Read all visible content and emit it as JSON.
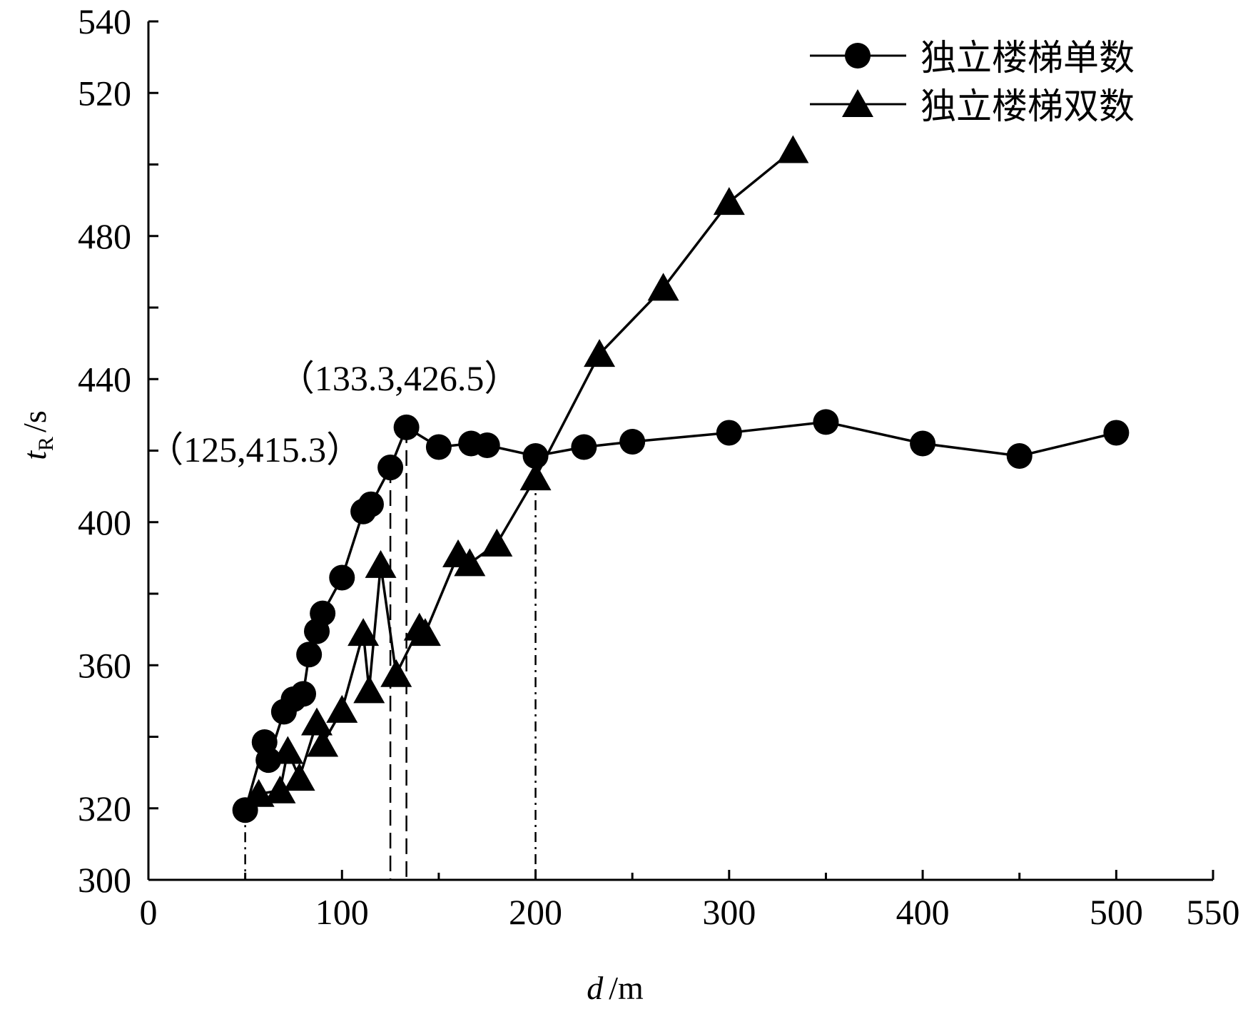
{
  "chart_data": {
    "type": "line",
    "xlabel": {
      "symbol": "d",
      "unit": "/m"
    },
    "ylabel": {
      "symbol": "t",
      "subscript": "R",
      "unit": "/s"
    },
    "xlim": [
      0,
      550
    ],
    "ylim": [
      300,
      540
    ],
    "xticks": [
      0,
      100,
      200,
      300,
      400,
      500,
      550
    ],
    "yticks": [
      300,
      320,
      360,
      400,
      440,
      480,
      520,
      540
    ],
    "legend_position": "top-right",
    "series": [
      {
        "name": "独立楼梯单数",
        "marker": "circle",
        "points": [
          [
            50,
            319.5
          ],
          [
            60,
            338.5
          ],
          [
            62,
            333.5
          ],
          [
            70,
            347
          ],
          [
            75,
            350.5
          ],
          [
            80,
            352
          ],
          [
            83,
            363
          ],
          [
            87,
            369.5
          ],
          [
            90,
            374.5
          ],
          [
            100,
            384.5
          ],
          [
            111,
            403
          ],
          [
            115,
            405
          ],
          [
            125,
            415.3
          ],
          [
            133.3,
            426.5
          ],
          [
            150,
            421
          ],
          [
            166.7,
            422
          ],
          [
            175,
            421.5
          ],
          [
            200,
            418.5
          ],
          [
            225,
            421
          ],
          [
            250,
            422.5
          ],
          [
            300,
            425
          ],
          [
            350,
            428
          ],
          [
            400,
            422
          ],
          [
            450,
            418.5
          ],
          [
            500,
            425
          ]
        ]
      },
      {
        "name": "独立楼梯双数",
        "marker": "triangle",
        "points": [
          [
            57,
            324
          ],
          [
            68,
            325
          ],
          [
            72,
            336
          ],
          [
            78,
            328.5
          ],
          [
            87,
            344
          ],
          [
            90,
            338
          ],
          [
            100,
            347.5
          ],
          [
            111,
            369
          ],
          [
            114,
            353
          ],
          [
            120,
            388
          ],
          [
            128,
            357.5
          ],
          [
            140,
            370.5
          ],
          [
            143,
            369
          ],
          [
            160,
            391
          ],
          [
            166,
            388.5
          ],
          [
            180,
            394
          ],
          [
            200,
            412.5
          ],
          [
            233,
            447
          ],
          [
            266,
            465.5
          ],
          [
            300,
            489.5
          ],
          [
            333,
            504
          ]
        ]
      }
    ],
    "reference_lines": [
      {
        "x": 50,
        "y": 319.5,
        "style": "dash-dot"
      },
      {
        "x": 125,
        "y": 415.3,
        "style": "dashed"
      },
      {
        "x": 133.3,
        "y": 426.5,
        "style": "dashed"
      },
      {
        "x": 200,
        "y": 418.5,
        "style": "dash-dot"
      }
    ],
    "annotations": [
      {
        "text": "（133.3,426.5）",
        "x": 133.3,
        "y": 426.5
      },
      {
        "text": "（125,415.3）",
        "x": 125,
        "y": 415.3
      }
    ]
  }
}
